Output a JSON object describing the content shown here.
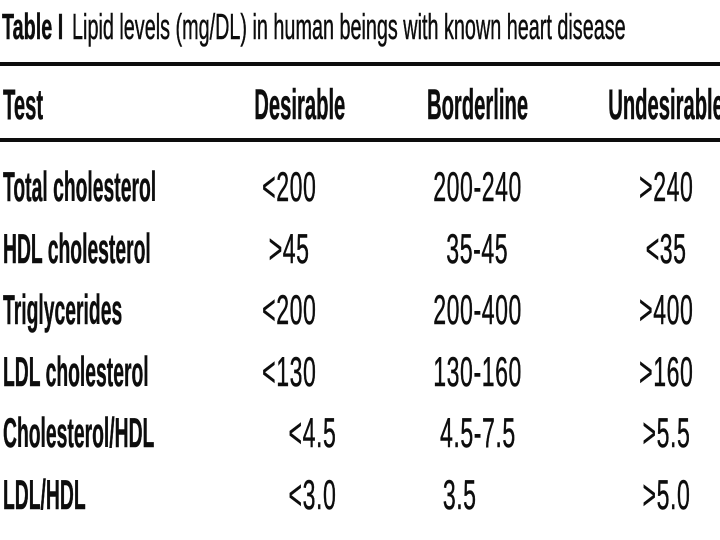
{
  "title": {
    "label": "Table I",
    "text": "Lipid levels (mg/DL) in human beings with known heart disease"
  },
  "table": {
    "columns": [
      "Test",
      "Desirable",
      "Borderline",
      "Undesirable"
    ],
    "rows": [
      [
        "Total cholesterol",
        "<200",
        "200-240",
        ">240"
      ],
      [
        "HDL cholesterol",
        ">45",
        "35-45",
        "<35"
      ],
      [
        "Triglycerides",
        "<200",
        "200-400",
        ">400"
      ],
      [
        "LDL cholesterol",
        "<130",
        "130-160",
        ">160"
      ],
      [
        "Cholesterol/HDL",
        "<4.5",
        "4.5-7.5",
        ">5.5"
      ],
      [
        "LDL/HDL",
        "<3.0",
        "3.5",
        ">5.0"
      ]
    ]
  },
  "colors": {
    "text": "#0d0d0d",
    "rule": "#0d0d0d",
    "background": "#ffffff"
  }
}
